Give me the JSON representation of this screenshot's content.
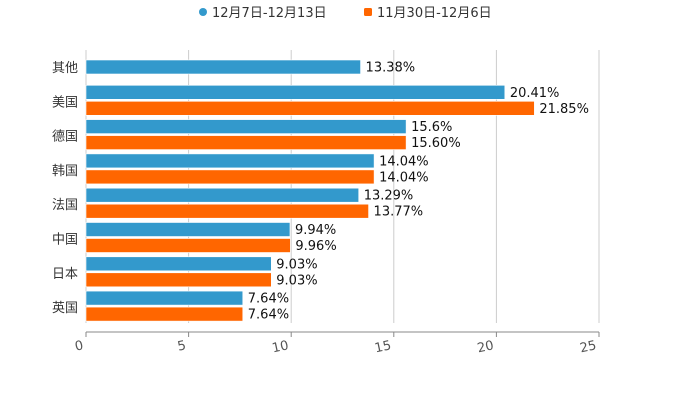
{
  "chart_data": {
    "type": "bar",
    "orientation": "horizontal",
    "title": "",
    "xlabel": "",
    "ylabel": "",
    "xlim": [
      0,
      25
    ],
    "x_ticks": [
      "0",
      "5",
      "10",
      "15",
      "20",
      "25"
    ],
    "grid": true,
    "legend_position": "top-center",
    "categories": [
      "其他",
      "美国",
      "德国",
      "韩国",
      "法国",
      "中国",
      "日本",
      "英国"
    ],
    "series": [
      {
        "name": "12月7日-12月13日",
        "color": "#3399cc",
        "values": [
          13.38,
          20.41,
          15.6,
          14.04,
          13.29,
          9.94,
          9.03,
          7.64
        ],
        "labels": [
          "13.38%",
          "20.41%",
          "15.6%",
          "14.04%",
          "13.29%",
          "9.94%",
          "9.03%",
          "7.64%"
        ]
      },
      {
        "name": "11月30日-12月6日",
        "color": "#ff6600",
        "values": [
          null,
          21.85,
          15.6,
          14.04,
          13.77,
          9.96,
          9.03,
          7.64
        ],
        "labels": [
          null,
          "21.85%",
          "15.60%",
          "14.04%",
          "13.77%",
          "9.96%",
          "9.03%",
          "7.64%"
        ]
      }
    ]
  }
}
